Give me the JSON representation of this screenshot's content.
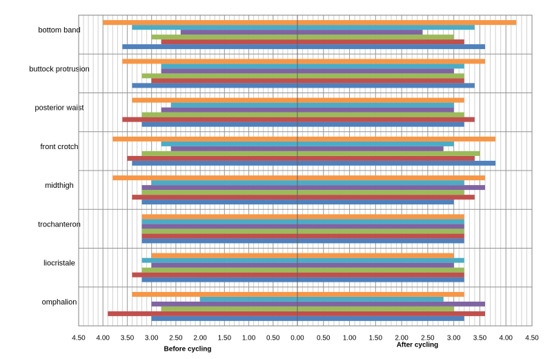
{
  "chart_data": [
    {
      "type": "bar",
      "orientation": "horizontal",
      "xlabel": "Before cycling",
      "categories": [
        "bottom band",
        "buttock protrusion",
        "posterior waist",
        "front crotch",
        "midthigh",
        "trochanteron",
        "liocristale",
        "omphalion"
      ],
      "xlim": [
        4.5,
        0
      ],
      "xticks": [
        {
          "value": 4.5,
          "label": "4.50"
        },
        {
          "value": 4,
          "label": "4.00"
        },
        {
          "value": 3.5,
          "label": "3.50"
        },
        {
          "value": 3,
          "label": "3.00"
        },
        {
          "value": 2.5,
          "label": "2.50"
        },
        {
          "value": 2,
          "label": "2.00"
        },
        {
          "value": 1.5,
          "label": "1.50"
        },
        {
          "value": 1,
          "label": "1.00"
        },
        {
          "value": 0.5,
          "label": "0.50"
        },
        {
          "value": 0,
          "label": "0.00"
        }
      ],
      "grid": true,
      "series": [
        {
          "color": "#4f81bd",
          "values": [
            3.6,
            3.4,
            3.2,
            3.4,
            3.2,
            3.2,
            3.2,
            3.0
          ]
        },
        {
          "color": "#c0504d",
          "values": [
            2.8,
            3.0,
            3.6,
            3.5,
            3.4,
            3.2,
            3.4,
            3.9
          ]
        },
        {
          "color": "#9bbb59",
          "values": [
            3.0,
            3.2,
            3.2,
            3.2,
            3.2,
            3.2,
            3.2,
            2.8
          ]
        },
        {
          "color": "#8064a2",
          "values": [
            2.4,
            2.8,
            2.8,
            2.6,
            3.2,
            3.2,
            3.0,
            3.0
          ]
        },
        {
          "color": "#4bacc6",
          "values": [
            3.4,
            2.8,
            2.6,
            2.8,
            3.0,
            3.2,
            3.2,
            2.0
          ]
        },
        {
          "color": "#f79646",
          "values": [
            4.0,
            3.6,
            3.4,
            3.8,
            3.8,
            3.2,
            3.0,
            3.4
          ]
        }
      ]
    },
    {
      "type": "bar",
      "orientation": "horizontal",
      "xlabel": "After cycling",
      "xlim": [
        0,
        4.5
      ],
      "xticks": [
        {
          "value": 0.5,
          "label": "0.50"
        },
        {
          "value": 1,
          "label": "1.00"
        },
        {
          "value": 1.5,
          "label": "1.50"
        },
        {
          "value": 2,
          "label": "2.00"
        },
        {
          "value": 2.5,
          "label": "2.50"
        },
        {
          "value": 3,
          "label": "3.00"
        },
        {
          "value": 3.5,
          "label": "3.50"
        },
        {
          "value": 4,
          "label": "4.00"
        },
        {
          "value": 4.5,
          "label": "4.50"
        }
      ],
      "grid": true,
      "series": [
        {
          "color": "#4f81bd",
          "values": [
            3.6,
            3.4,
            3.2,
            3.8,
            3.0,
            3.2,
            3.2,
            3.2
          ]
        },
        {
          "color": "#c0504d",
          "values": [
            3.2,
            3.2,
            3.4,
            3.4,
            3.4,
            3.2,
            3.2,
            3.6
          ]
        },
        {
          "color": "#9bbb59",
          "values": [
            3.0,
            3.2,
            3.2,
            3.5,
            3.2,
            3.2,
            3.2,
            3.0
          ]
        },
        {
          "color": "#8064a2",
          "values": [
            2.4,
            3.0,
            3.0,
            2.8,
            3.6,
            3.2,
            3.0,
            3.6
          ]
        },
        {
          "color": "#4bacc6",
          "values": [
            3.4,
            3.2,
            3.0,
            3.0,
            3.2,
            3.2,
            3.2,
            2.8
          ]
        },
        {
          "color": "#f79646",
          "values": [
            4.2,
            3.6,
            3.2,
            3.8,
            3.6,
            3.2,
            3.0,
            3.2
          ]
        }
      ]
    }
  ]
}
